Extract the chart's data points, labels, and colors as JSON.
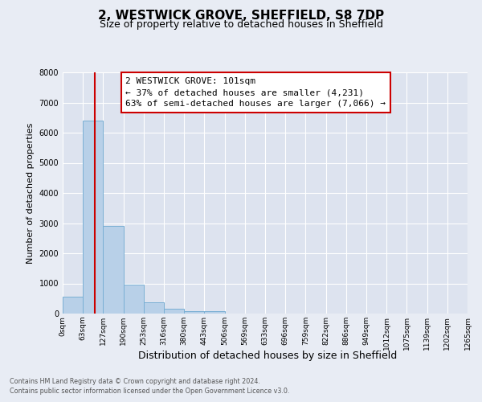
{
  "title": "2, WESTWICK GROVE, SHEFFIELD, S8 7DP",
  "subtitle": "Size of property relative to detached houses in Sheffield",
  "xlabel": "Distribution of detached houses by size in Sheffield",
  "ylabel": "Number of detached properties",
  "bin_labels": [
    "0sqm",
    "63sqm",
    "127sqm",
    "190sqm",
    "253sqm",
    "316sqm",
    "380sqm",
    "443sqm",
    "506sqm",
    "569sqm",
    "633sqm",
    "696sqm",
    "759sqm",
    "822sqm",
    "886sqm",
    "949sqm",
    "1012sqm",
    "1075sqm",
    "1139sqm",
    "1202sqm",
    "1265sqm"
  ],
  "bar_values": [
    550,
    6400,
    2920,
    970,
    370,
    155,
    85,
    70,
    0,
    0,
    0,
    0,
    0,
    0,
    0,
    0,
    0,
    0,
    0,
    0
  ],
  "bar_color": "#b8d0e8",
  "bar_edge_color": "#7aafd4",
  "vline_color": "#cc0000",
  "vline_x_bin": 1.594,
  "ylim": [
    0,
    8000
  ],
  "yticks": [
    0,
    1000,
    2000,
    3000,
    4000,
    5000,
    6000,
    7000,
    8000
  ],
  "annotation_text": "2 WESTWICK GROVE: 101sqm\n← 37% of detached houses are smaller (4,231)\n63% of semi-detached houses are larger (7,066) →",
  "annotation_box_color": "#ffffff",
  "annotation_box_edge": "#cc0000",
  "footnote1": "Contains HM Land Registry data © Crown copyright and database right 2024.",
  "footnote2": "Contains public sector information licensed under the Open Government Licence v3.0.",
  "background_color": "#e8ecf4",
  "plot_bg_color": "#dde3ef",
  "grid_color": "#ffffff",
  "title_fontsize": 11,
  "subtitle_fontsize": 9,
  "ylabel_fontsize": 8,
  "xlabel_fontsize": 9,
  "tick_fontsize": 7,
  "annot_fontsize": 8
}
